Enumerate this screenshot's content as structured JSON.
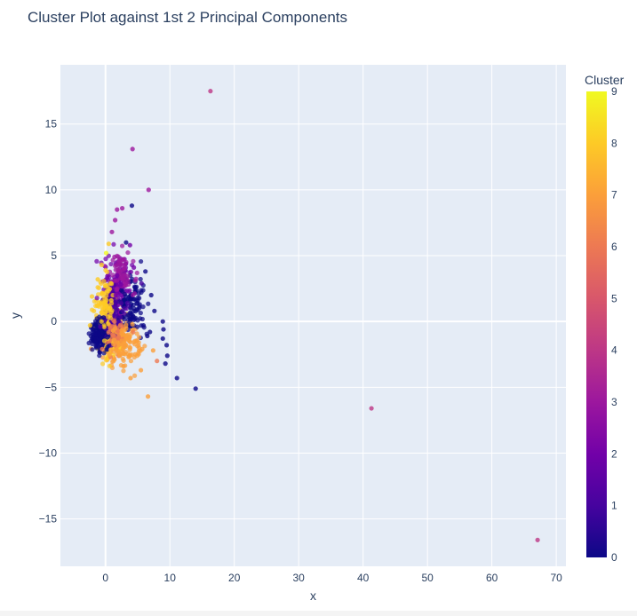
{
  "chart_data": {
    "type": "scatter",
    "title": "Cluster Plot against 1st 2 Principal Components",
    "xlabel": "x",
    "ylabel": "y",
    "xlim": [
      -7,
      71.5
    ],
    "ylim": [
      -18.6,
      19.5
    ],
    "xticks": [
      0,
      10,
      20,
      30,
      40,
      50,
      60,
      70
    ],
    "yticks": [
      -15,
      -10,
      -5,
      0,
      5,
      10,
      15
    ],
    "grid": true,
    "plot_background": "#E5ECF6",
    "colorbar": {
      "title": "Cluster",
      "min": 0,
      "max": 9,
      "ticks": [
        0,
        1,
        2,
        3,
        4,
        5,
        6,
        7,
        8,
        9
      ],
      "colorscale": [
        "#0d0887",
        "#46039f",
        "#7201a8",
        "#9c179e",
        "#bd3786",
        "#d8576b",
        "#ed7953",
        "#fb9f3a",
        "#fdca26",
        "#f0f921"
      ],
      "placement": "right"
    },
    "points": [
      {
        "x": 16.3,
        "y": 17.5,
        "cluster": 4
      },
      {
        "x": 4.2,
        "y": 13.1,
        "cluster": 3
      },
      {
        "x": 6.7,
        "y": 10.0,
        "cluster": 3
      },
      {
        "x": 4.1,
        "y": 8.8,
        "cluster": 0
      },
      {
        "x": 1.8,
        "y": 8.5,
        "cluster": 3
      },
      {
        "x": 2.6,
        "y": 8.6,
        "cluster": 3
      },
      {
        "x": 1.5,
        "y": 7.7,
        "cluster": 3
      },
      {
        "x": 1.0,
        "y": 6.8,
        "cluster": 3
      },
      {
        "x": 3.2,
        "y": 6.0,
        "cluster": 0
      },
      {
        "x": 3.8,
        "y": 5.8,
        "cluster": 2
      },
      {
        "x": 0.5,
        "y": 5.9,
        "cluster": 8
      },
      {
        "x": 0.1,
        "y": 5.2,
        "cluster": 9
      },
      {
        "x": 41.3,
        "y": -6.6,
        "cluster": 4
      },
      {
        "x": 67.1,
        "y": -16.6,
        "cluster": 4
      },
      {
        "x": 14.0,
        "y": -5.1,
        "cluster": 0
      },
      {
        "x": 11.1,
        "y": -4.3,
        "cluster": 0
      },
      {
        "x": 9.6,
        "y": -2.6,
        "cluster": 0
      },
      {
        "x": 9.3,
        "y": -3.2,
        "cluster": 0
      },
      {
        "x": 8.9,
        "y": 0.0,
        "cluster": 0
      },
      {
        "x": 9.0,
        "y": -0.6,
        "cluster": 0
      },
      {
        "x": 8.9,
        "y": -1.3,
        "cluster": 0
      },
      {
        "x": 9.5,
        "y": -1.8,
        "cluster": 0
      },
      {
        "x": 6.6,
        "y": -5.7,
        "cluster": 7
      },
      {
        "x": 5.5,
        "y": -3.7,
        "cluster": 7
      },
      {
        "x": 3.9,
        "y": -4.3,
        "cluster": 7
      },
      {
        "x": 4.6,
        "y": -2.5,
        "cluster": 7
      },
      {
        "x": 2.8,
        "y": -3.4,
        "cluster": 7
      },
      {
        "x": 6.2,
        "y": 3.8,
        "cluster": 0
      },
      {
        "x": 7.1,
        "y": 2.0,
        "cluster": 0
      },
      {
        "x": 7.6,
        "y": 0.8,
        "cluster": 0
      },
      {
        "x": 6.9,
        "y": -0.8,
        "cluster": 0
      },
      {
        "x": 5.6,
        "y": 2.9,
        "cluster": 1
      },
      {
        "x": 5.0,
        "y": 1.6,
        "cluster": 0
      },
      {
        "x": 5.9,
        "y": -0.3,
        "cluster": 0
      },
      {
        "x": 4.4,
        "y": 4.1,
        "cluster": 2
      },
      {
        "x": 2.7,
        "y": 4.7,
        "cluster": 3
      },
      {
        "x": 1.4,
        "y": 4.9,
        "cluster": 3
      },
      {
        "x": -0.6,
        "y": 4.3,
        "cluster": 8
      },
      {
        "x": -1.2,
        "y": 3.2,
        "cluster": 8
      },
      {
        "x": -2.1,
        "y": 1.9,
        "cluster": 8
      },
      {
        "x": -1.8,
        "y": 0.8,
        "cluster": 8
      },
      {
        "x": -2.4,
        "y": -0.3,
        "cluster": 8
      },
      {
        "x": -1.6,
        "y": -1.0,
        "cluster": 0
      },
      {
        "x": -1.2,
        "y": -1.8,
        "cluster": 0
      },
      {
        "x": -0.8,
        "y": -0.4,
        "cluster": 1
      },
      {
        "x": -0.3,
        "y": 0.3,
        "cluster": 0
      },
      {
        "x": 0.3,
        "y": -1.2,
        "cluster": 0
      },
      {
        "x": -0.5,
        "y": -2.1,
        "cluster": 6
      },
      {
        "x": 0.6,
        "y": -2.5,
        "cluster": 7
      },
      {
        "x": 1.4,
        "y": -2.9,
        "cluster": 7
      },
      {
        "x": 2.2,
        "y": -2.6,
        "cluster": 7
      },
      {
        "x": 1.9,
        "y": -1.6,
        "cluster": 7
      },
      {
        "x": 1.2,
        "y": -0.7,
        "cluster": 7
      },
      {
        "x": 2.5,
        "y": -0.9,
        "cluster": 7
      },
      {
        "x": 3.1,
        "y": -1.8,
        "cluster": 7
      },
      {
        "x": 0.4,
        "y": 0.8,
        "cluster": 8
      },
      {
        "x": 0.9,
        "y": 1.6,
        "cluster": 8
      },
      {
        "x": 0.2,
        "y": 2.3,
        "cluster": 8
      },
      {
        "x": 1.6,
        "y": 2.0,
        "cluster": 2
      },
      {
        "x": 2.4,
        "y": 2.8,
        "cluster": 2
      },
      {
        "x": 1.8,
        "y": 3.5,
        "cluster": 2
      },
      {
        "x": 3.0,
        "y": 3.1,
        "cluster": 3
      },
      {
        "x": 3.4,
        "y": 1.4,
        "cluster": 1
      },
      {
        "x": 2.9,
        "y": 0.6,
        "cluster": 1
      },
      {
        "x": 3.8,
        "y": 0.2,
        "cluster": 0
      },
      {
        "x": 4.3,
        "y": -0.8,
        "cluster": 6
      },
      {
        "x": 4.9,
        "y": -1.5,
        "cluster": 7
      },
      {
        "x": 5.7,
        "y": -2.1,
        "cluster": 7
      },
      {
        "x": 6.5,
        "y": -1.1,
        "cluster": 0
      },
      {
        "x": 3.6,
        "y": -2.7,
        "cluster": 7
      },
      {
        "x": 8.0,
        "y": -3.0,
        "cluster": 6
      },
      {
        "x": 7.4,
        "y": -2.2,
        "cluster": 7
      }
    ]
  }
}
